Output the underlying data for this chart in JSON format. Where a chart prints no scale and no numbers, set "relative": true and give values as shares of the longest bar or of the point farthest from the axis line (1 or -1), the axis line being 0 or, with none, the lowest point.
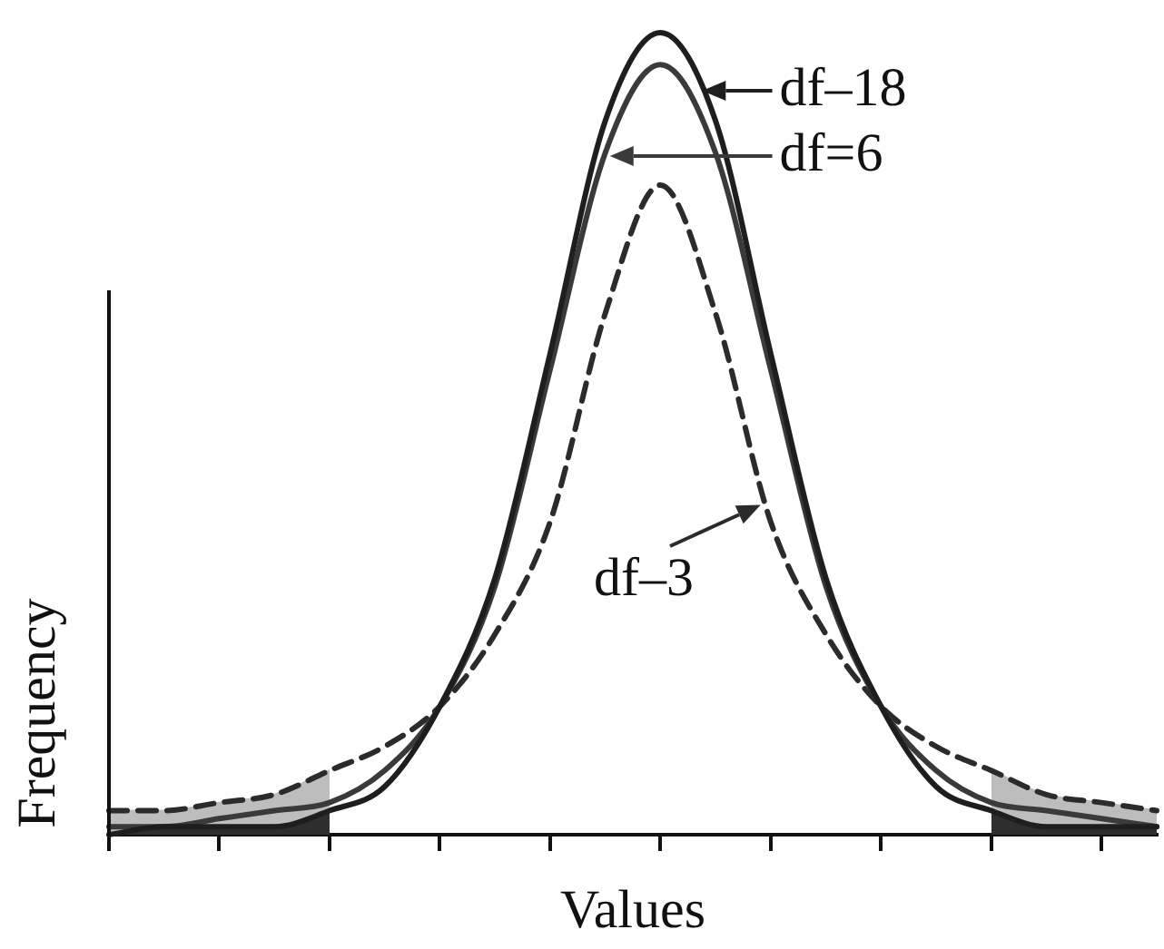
{
  "chart_data": {
    "type": "line",
    "xlabel": "Values",
    "ylabel": "Frequency",
    "relative": true,
    "tick_labels": false,
    "marker": "none",
    "line_style": "solid",
    "legend": "top right",
    "categories": [
      null,
      null,
      null,
      null,
      null,
      null,
      null,
      null,
      null,
      null,
      null,
      null,
      null,
      null,
      null,
      null,
      null,
      null,
      null,
      null
    ],
    "series": [
      {
        "name": "df–18",
        "color": "#1e1e1e",
        "values": [
          0,
          0.01,
          0.01,
          0.01,
          0.03,
          0.06,
          0.16,
          0.32,
          0.6,
          0.89,
          1,
          0.89,
          0.6,
          0.32,
          0.16,
          0.06,
          0.03,
          0.01,
          0.01,
          0.01
        ]
      },
      {
        "name": "df=6",
        "color": "#3a3a3a",
        "values": [
          0.01,
          0.01,
          0.02,
          0.03,
          0.04,
          0.08,
          0.16,
          0.31,
          0.58,
          0.85,
          0.96,
          0.85,
          0.58,
          0.31,
          0.16,
          0.08,
          0.04,
          0.03,
          0.02,
          0.01
        ]
      },
      {
        "name": "df–3",
        "color": "#2b2b2b",
        "line_style": "dashed",
        "values": [
          0.03,
          0.03,
          0.04,
          0.05,
          0.08,
          0.11,
          0.16,
          0.25,
          0.39,
          0.65,
          0.81,
          0.65,
          0.39,
          0.25,
          0.16,
          0.11,
          0.08,
          0.05,
          0.04,
          0.03
        ]
      },
      {
        "type": "area",
        "color": "#bdbdbd",
        "values": [
          0.03,
          0.03,
          0.04,
          0.05,
          0.08,
          null,
          null,
          null,
          null,
          null,
          null,
          null,
          null,
          null,
          null,
          null,
          0.08,
          0.05,
          0.04,
          0.03
        ]
      },
      {
        "type": "area",
        "color": "#2e2e2e",
        "values": [
          0,
          0.01,
          0.01,
          0.01,
          0.03,
          null,
          null,
          null,
          null,
          null,
          null,
          null,
          null,
          null,
          null,
          null,
          0.03,
          0.01,
          0.01,
          0.01
        ]
      }
    ]
  }
}
